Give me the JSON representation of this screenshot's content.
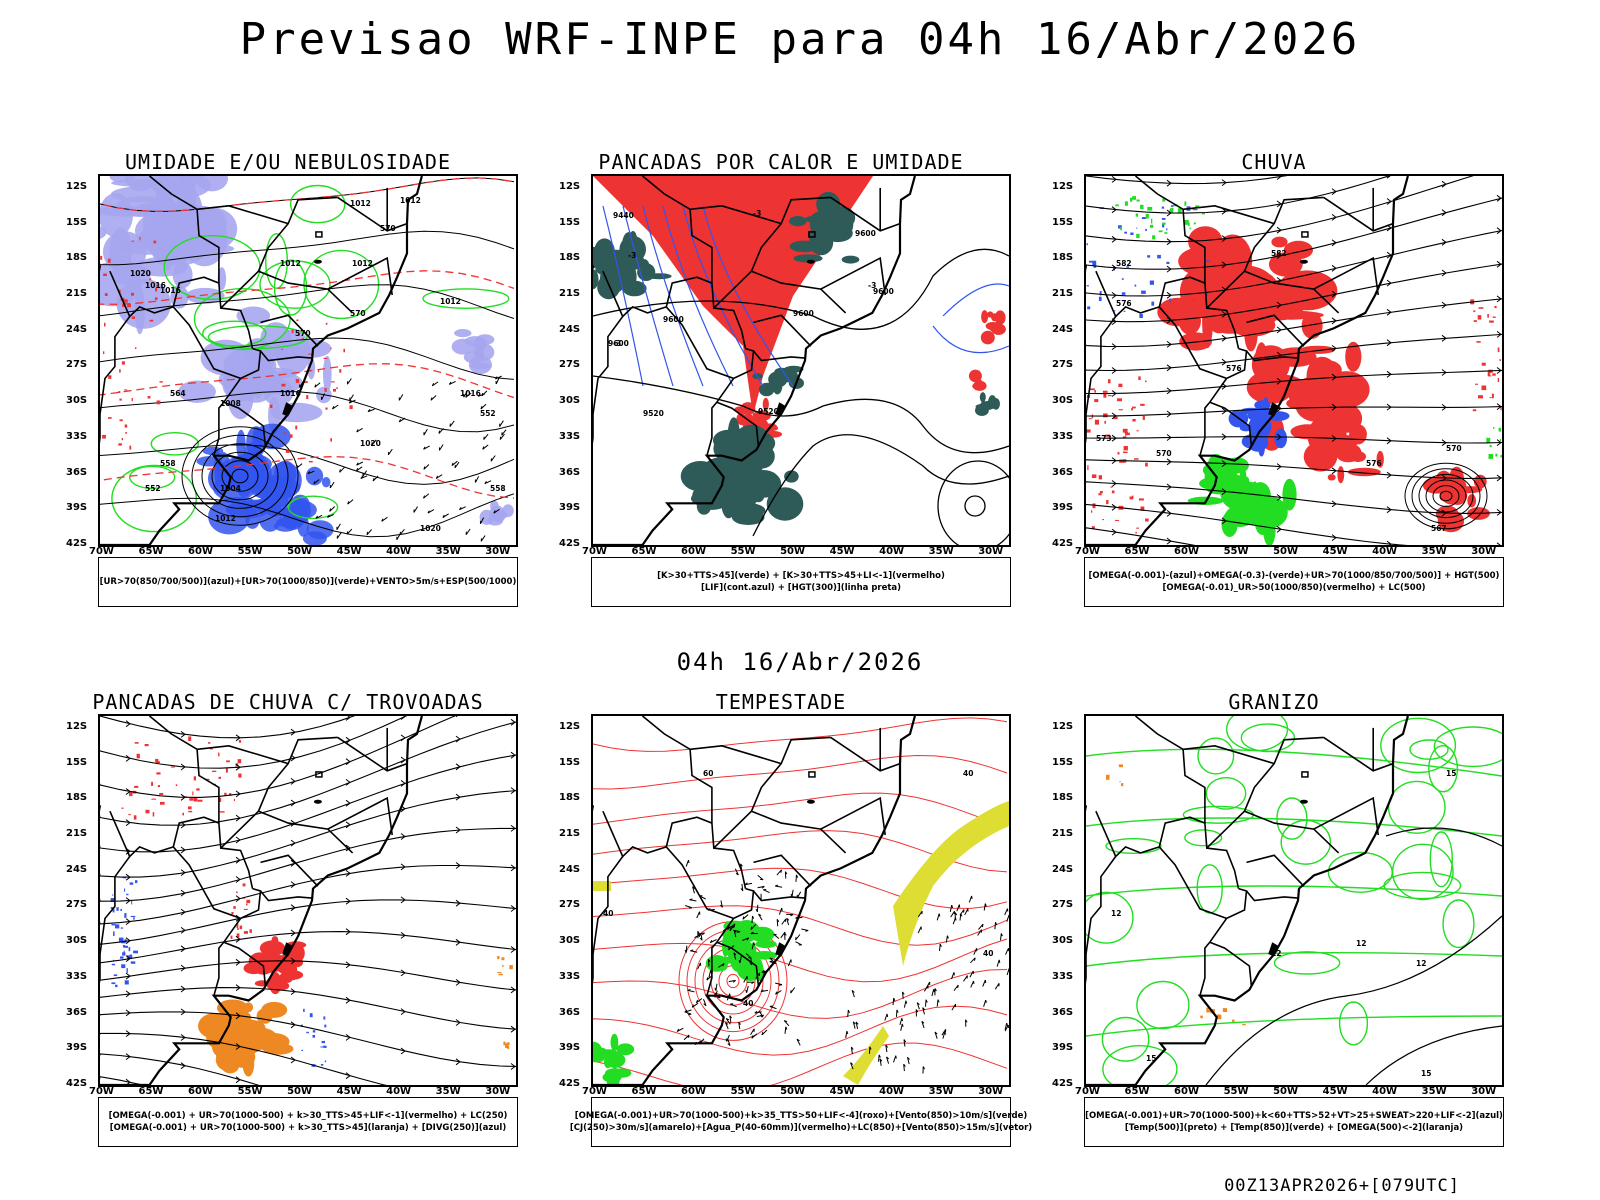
{
  "header": {
    "title": "Previsao WRF-INPE  para 04h 16/Abr/2026"
  },
  "midline": {
    "title": "04h 16/Abr/2026"
  },
  "footer": {
    "run": "00Z13APR2026+[079UTC]"
  },
  "axes": {
    "lat_labels": [
      "12S",
      "15S",
      "18S",
      "21S",
      "24S",
      "27S",
      "30S",
      "33S",
      "36S",
      "39S",
      "42S"
    ],
    "lon_labels": [
      "70W",
      "65W",
      "60W",
      "55W",
      "50W",
      "45W",
      "40W",
      "35W",
      "30W"
    ]
  },
  "colors": {
    "blue": "#3355ee",
    "lavender": "#a6a6f0",
    "green": "#22dd22",
    "red": "#ee3333",
    "dark_teal": "#2e5a57",
    "orange": "#ee8822",
    "yellow": "#dddd33",
    "purple": "#9933cc"
  },
  "panels": [
    {
      "title": "UMIDADE E/OU NEBULOSIDADE",
      "legend": [
        "[UR>70(850/700/500)](azul)+[UR>70(1000/850)](verde)+VENTO>5m/s+ESP(500/1000)"
      ],
      "contour_labels": [
        "1012",
        "1012",
        "1012",
        "1012",
        "1012",
        "1020",
        "1016",
        "1016",
        "1016",
        "1008",
        "1004",
        "1012",
        "1020",
        "1020",
        "1016",
        "570",
        "570",
        "570",
        "564",
        "558",
        "552",
        "558",
        "552"
      ]
    },
    {
      "title": "PANCADAS POR CALOR E UMIDADE",
      "legend": [
        "[K>30+TTS>45](verde) + [K>30+TTS>45+LI<-1](vermelho)",
        "[LIF](cont.azul) + [HGT(300)](linha preta)"
      ],
      "contour_labels": [
        "9600",
        "9600",
        "9600",
        "9600",
        "9520",
        "9520",
        "9440",
        "-3",
        "-3",
        "-3",
        "-3",
        "9600"
      ]
    },
    {
      "title": "CHUVA",
      "legend": [
        "[OMEGA(-0.001)-(azul)+OMEGA(-0.3)-(verde)+UR>70(1000/850/700/500)] + HGT(500)",
        "[OMEGA(-0.01)_UR>50(1000/850)(vermelho) + LC(500)"
      ],
      "contour_labels": [
        "582",
        "582",
        "576",
        "576",
        "573",
        "570",
        "576",
        "570",
        "567"
      ]
    },
    {
      "title": "PANCADAS DE CHUVA C/ TROVOADAS",
      "legend": [
        "[OMEGA(-0.001) + UR>70(1000-500) + k>30_TTS>45+LIF<-1](vermelho) + LC(250)",
        "[OMEGA(-0.001) + UR>70(1000-500) + k>30_TTS>45](laranja) + [DIVG(250)](azul)"
      ],
      "contour_labels": []
    },
    {
      "title": "TEMPESTADE",
      "legend": [
        "[OMEGA(-0.001)+UR>70(1000-500)+k>35_TTS>50+LIF<-4](roxo)+[Vento(850)>10m/s](verde)",
        "[CJ(250)>30m/s](amarelo)+[Agua_P(40-60mm)](vermelho)+LC(850)+[Vento(850)>15m/s](vetor)"
      ],
      "contour_labels": [
        "60",
        "40",
        "40",
        "40",
        "40"
      ]
    },
    {
      "title": "GRANIZO",
      "legend": [
        "[OMEGA(-0.001)+UR>70(1000-500)+k<60+TTS>52+VT>25+SWEAT>220+LIF<-2](azul)",
        "[Temp(500)](preto) + [Temp(850)](verde) + [OMEGA(500)<-2](laranja)"
      ],
      "contour_labels": [
        "15",
        "12",
        "12",
        "12",
        "15",
        "12",
        "15"
      ]
    }
  ]
}
